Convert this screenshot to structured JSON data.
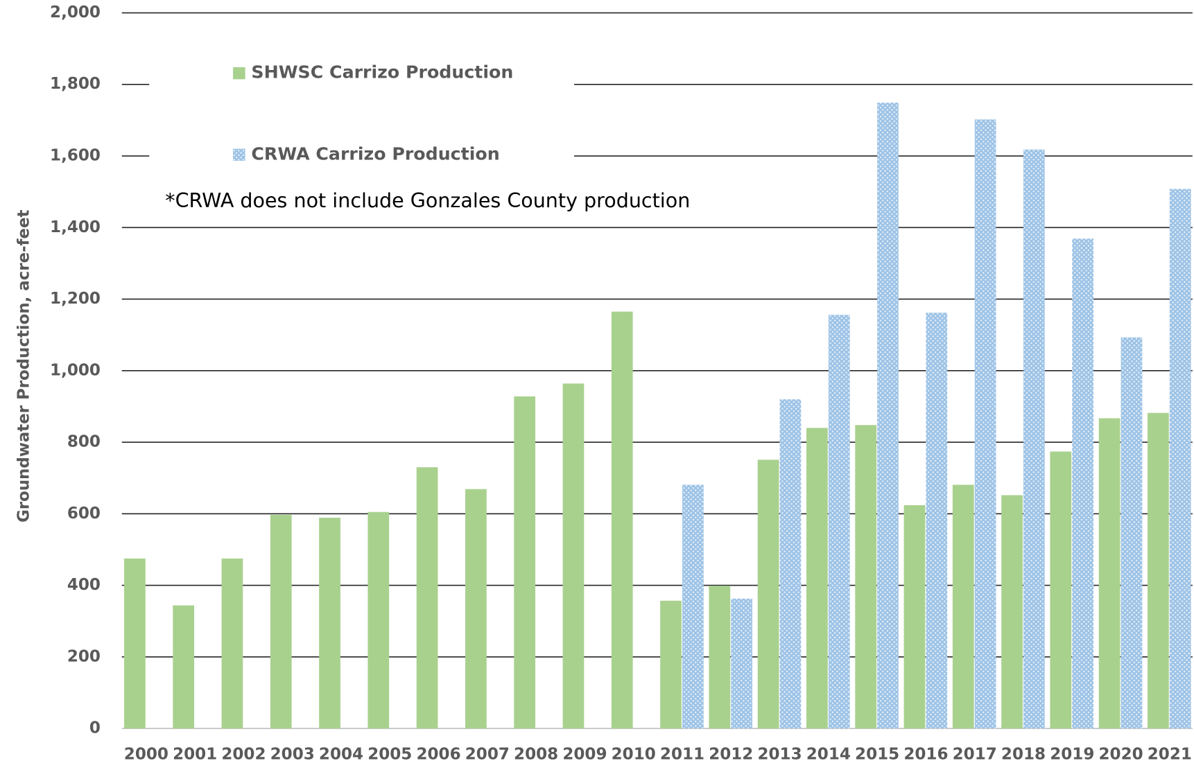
{
  "chart_data": {
    "type": "bar",
    "y_label": "Groundwater Production,  acre-feet",
    "note": "*CRWA does not include Gonzales County production",
    "categories": [
      "2000",
      "2001",
      "2002",
      "2003",
      "2004",
      "2005",
      "2006",
      "2007",
      "2008",
      "2009",
      "2010",
      "2011",
      "2012",
      "2013",
      "2014",
      "2015",
      "2016",
      "2017",
      "2018",
      "2019",
      "2020",
      "2021"
    ],
    "series": [
      {
        "name": "SHWSC Carrizo Production",
        "color": "#a9d18e",
        "values": [
          475,
          344,
          475,
          597,
          589,
          605,
          730,
          669,
          928,
          964,
          1165,
          357,
          399,
          751,
          840,
          848,
          624,
          681,
          652,
          774,
          867,
          882
        ]
      },
      {
        "name": "CRWA Carrizo Production",
        "color": "#9dc3e6",
        "values": [
          null,
          null,
          null,
          null,
          null,
          null,
          null,
          null,
          null,
          null,
          null,
          681,
          363,
          920,
          1156,
          1749,
          1162,
          1702,
          1618,
          1369,
          1093,
          1508
        ]
      }
    ],
    "ylim": [
      0,
      2000
    ],
    "yticks": [
      0,
      200,
      400,
      600,
      800,
      {
        "value": 1000,
        "label": "1,000"
      },
      {
        "value": 1200,
        "label": "1,200"
      },
      {
        "value": 1400,
        "label": "1,400"
      },
      {
        "value": 1600,
        "label": "1,600"
      },
      {
        "value": 1800,
        "label": "1,800"
      },
      {
        "value": 2000,
        "label": "2,000"
      }
    ],
    "grid": true
  }
}
